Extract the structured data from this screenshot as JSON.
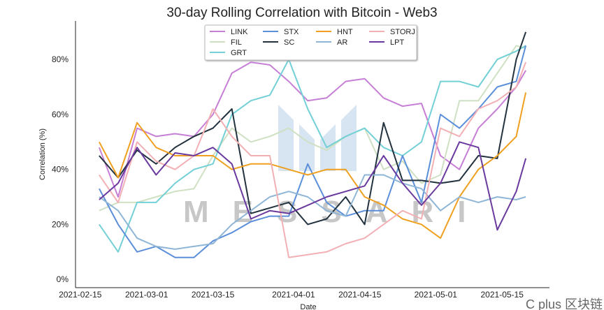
{
  "chart_data": {
    "type": "line",
    "title": "30-day Rolling Correlation with Bitcoin - Web3",
    "xlabel": "Date",
    "ylabel": "Correlation (%)",
    "ylim": [
      -3,
      94
    ],
    "xlim": [
      "2021-02-14",
      "2021-05-25"
    ],
    "yticks": [
      0,
      20,
      40,
      60,
      80
    ],
    "ytick_labels": [
      "0%",
      "20%",
      "40%",
      "60%",
      "80%"
    ],
    "xticks": [
      "2021-02-15",
      "2021-03-01",
      "2021-03-15",
      "2021-04-01",
      "2021-04-15",
      "2021-05-01",
      "2021-05-15"
    ],
    "grid": false,
    "legend_position": "top-center",
    "x": [
      "2021-02-19",
      "2021-02-23",
      "2021-02-27",
      "2021-03-03",
      "2021-03-07",
      "2021-03-11",
      "2021-03-15",
      "2021-03-19",
      "2021-03-23",
      "2021-03-27",
      "2021-03-31",
      "2021-04-04",
      "2021-04-08",
      "2021-04-12",
      "2021-04-16",
      "2021-04-20",
      "2021-04-24",
      "2021-04-28",
      "2021-05-02",
      "2021-05-06",
      "2021-05-10",
      "2021-05-14",
      "2021-05-18",
      "2021-05-20"
    ],
    "series": [
      {
        "name": "LINK",
        "color": "#c77fd6",
        "values": [
          48,
          30,
          55,
          52,
          53,
          52,
          60,
          75,
          79,
          78,
          72,
          65,
          66,
          72,
          73,
          66,
          63,
          64,
          45,
          40,
          55,
          62,
          70,
          76
        ]
      },
      {
        "name": "FIL",
        "color": "#cfe0c3",
        "values": [
          25,
          28,
          28,
          30,
          32,
          33,
          45,
          55,
          50,
          52,
          55,
          50,
          47,
          52,
          55,
          40,
          43,
          35,
          38,
          65,
          65,
          75,
          85,
          84
        ]
      },
      {
        "name": "GRT",
        "color": "#72d0d6",
        "values": [
          20,
          10,
          28,
          28,
          35,
          40,
          42,
          60,
          65,
          67,
          80,
          62,
          48,
          52,
          55,
          48,
          45,
          50,
          72,
          72,
          70,
          80,
          83,
          85
        ]
      },
      {
        "name": "STX",
        "color": "#5b8fd9",
        "values": [
          33,
          20,
          10,
          12,
          8,
          8,
          14,
          17,
          21,
          23,
          23,
          42,
          28,
          23,
          25,
          25,
          45,
          28,
          60,
          55,
          62,
          70,
          72,
          85
        ]
      },
      {
        "name": "SC",
        "color": "#22323f",
        "values": [
          45,
          37,
          47,
          42,
          48,
          52,
          55,
          62,
          24,
          26,
          28,
          20,
          22,
          30,
          20,
          57,
          36,
          36,
          35,
          36,
          45,
          44,
          80,
          90
        ]
      },
      {
        "name": "HNT",
        "color": "#f0a020",
        "values": [
          50,
          37,
          57,
          48,
          45,
          45,
          45,
          40,
          42,
          42,
          40,
          38,
          40,
          40,
          30,
          27,
          22,
          20,
          15,
          30,
          40,
          45,
          52,
          68
        ]
      },
      {
        "name": "AR",
        "color": "#8fb6d6",
        "values": [
          30,
          25,
          15,
          12,
          11,
          12,
          13,
          20,
          25,
          30,
          32,
          30,
          25,
          23,
          38,
          38,
          35,
          33,
          25,
          30,
          28,
          30,
          29,
          30
        ]
      },
      {
        "name": "STORJ",
        "color": "#f2b0b5",
        "values": [
          38,
          28,
          50,
          43,
          40,
          45,
          62,
          52,
          45,
          45,
          8,
          9,
          10,
          13,
          15,
          20,
          25,
          22,
          55,
          52,
          62,
          65,
          70,
          79
        ]
      },
      {
        "name": "LPT",
        "color": "#6a3a9e",
        "values": [
          29,
          35,
          48,
          38,
          46,
          45,
          48,
          42,
          22,
          25,
          24,
          27,
          30,
          32,
          34,
          45,
          35,
          27,
          35,
          50,
          48,
          18,
          32,
          44
        ]
      }
    ]
  },
  "watermarks": {
    "brand": "MESSARI",
    "source": "C plus 区块链"
  }
}
